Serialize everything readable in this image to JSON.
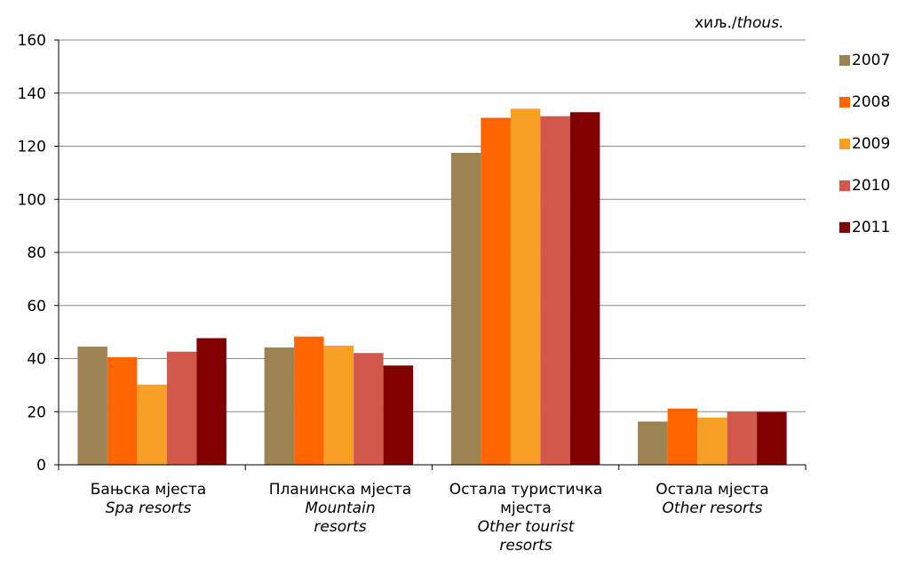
{
  "unit_label": {
    "local": "хиљ./",
    "english": "thous."
  },
  "chart_data": {
    "type": "bar",
    "categories": [
      {
        "local": "Бањска мјеста",
        "english": "Spa resorts"
      },
      {
        "local": "Планинска мјеста",
        "english": "Mountain resorts"
      },
      {
        "local": "Остала туристичка мјеста",
        "english": "Other tourist resorts"
      },
      {
        "local": "Остала мјеста",
        "english": "Other resorts"
      }
    ],
    "series": [
      {
        "name": "2007",
        "color": "#9b8452",
        "values": [
          44.5,
          44.2,
          117.5,
          16.3
        ]
      },
      {
        "name": "2008",
        "color": "#ff6600",
        "values": [
          40.5,
          48.3,
          130.7,
          21.2
        ]
      },
      {
        "name": "2009",
        "color": "#f8a026",
        "values": [
          30.2,
          44.9,
          134.1,
          17.8
        ]
      },
      {
        "name": "2010",
        "color": "#d2584c",
        "values": [
          42.6,
          42.1,
          131.3,
          20.0
        ]
      },
      {
        "name": "2011",
        "color": "#800000",
        "values": [
          47.7,
          37.4,
          132.8,
          19.9
        ]
      }
    ],
    "ylim": [
      0,
      160
    ],
    "yticks": [
      0,
      20,
      40,
      60,
      80,
      100,
      120,
      140,
      160
    ],
    "grid": true,
    "legend_position": "right"
  }
}
